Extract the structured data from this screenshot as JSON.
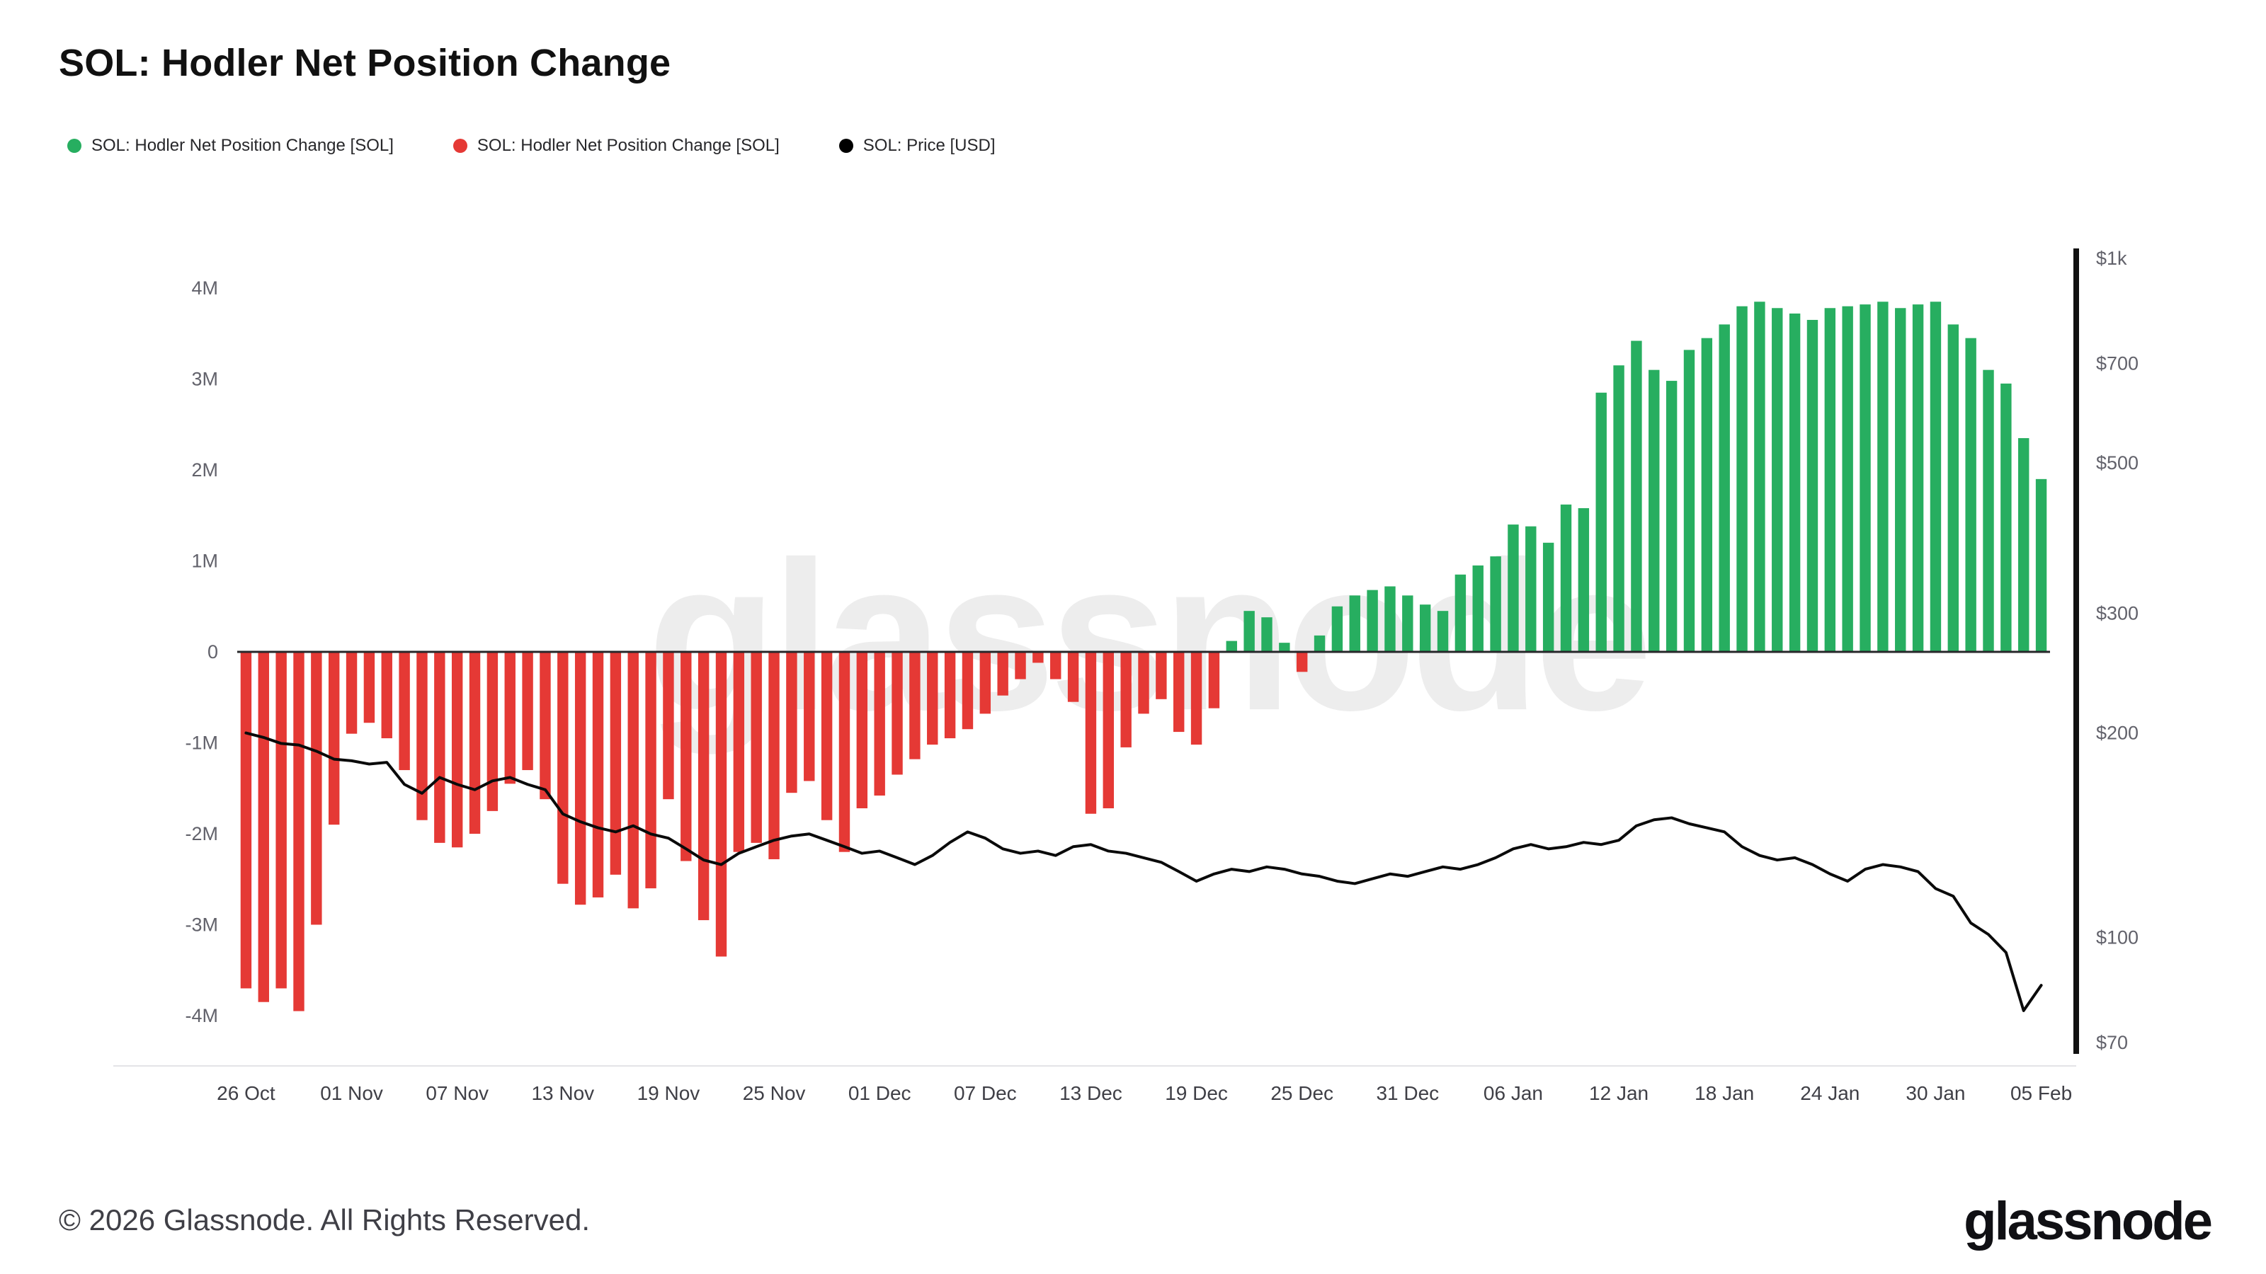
{
  "title": "SOL: Hodler Net Position Change",
  "watermark": "glassnode",
  "legend": [
    {
      "label": "SOL: Hodler Net Position Change [SOL]",
      "color": "#27ae60"
    },
    {
      "label": "SOL: Hodler Net Position Change [SOL]",
      "color": "#e53935"
    },
    {
      "label": "SOL: Price [USD]",
      "color": "#000000"
    }
  ],
  "footer": {
    "copyright": "© 2026 Glassnode. All Rights Reserved.",
    "brand": "glassnode"
  },
  "chart_data": {
    "type": "bar",
    "title": "SOL: Hodler Net Position Change",
    "grid": false,
    "legend_position": "top-left",
    "x_unit": "day",
    "x_ticks": {
      "labels": [
        "26 Oct",
        "01 Nov",
        "07 Nov",
        "13 Nov",
        "19 Nov",
        "25 Nov",
        "01 Dec",
        "07 Dec",
        "13 Dec",
        "19 Dec",
        "25 Dec",
        "31 Dec",
        "06 Jan",
        "12 Jan",
        "18 Jan",
        "24 Jan",
        "30 Jan",
        "05 Feb"
      ],
      "indices": [
        0,
        6,
        12,
        18,
        24,
        30,
        36,
        42,
        48,
        54,
        60,
        66,
        72,
        78,
        84,
        90,
        96,
        102
      ]
    },
    "left_axis": {
      "ticks": [
        "4M",
        "3M",
        "2M",
        "1M",
        "0",
        "-1M",
        "-2M",
        "-3M",
        "-4M"
      ],
      "values": [
        4,
        3,
        2,
        1,
        0,
        -1,
        -2,
        -3,
        -4
      ],
      "unit": "M SOL",
      "ylim": [
        -4.3,
        4.3
      ]
    },
    "right_axis": {
      "ticks": [
        "$1k",
        "$700",
        "$500",
        "$300",
        "$200",
        "$100",
        "$70"
      ],
      "values": [
        1000,
        700,
        500,
        300,
        200,
        100,
        70
      ],
      "scale": "log",
      "range": [
        70,
        1000
      ],
      "unit": "USD"
    },
    "series": [
      {
        "name": "SOL: Hodler Net Position Change [SOL]",
        "type": "bar",
        "axis": "left",
        "unit": "M",
        "positive_color": "#27ae60",
        "negative_color": "#e53935",
        "values": [
          -3.7,
          -3.85,
          -3.7,
          -3.95,
          -3.0,
          -1.9,
          -0.9,
          -0.78,
          -0.95,
          -1.3,
          -1.85,
          -2.1,
          -2.15,
          -2.0,
          -1.75,
          -1.45,
          -1.3,
          -1.62,
          -2.55,
          -2.78,
          -2.7,
          -2.45,
          -2.82,
          -2.6,
          -1.62,
          -2.3,
          -2.95,
          -3.35,
          -2.2,
          -2.1,
          -2.28,
          -1.55,
          -1.42,
          -1.85,
          -2.2,
          -1.72,
          -1.58,
          -1.35,
          -1.18,
          -1.02,
          -0.95,
          -0.85,
          -0.68,
          -0.48,
          -0.3,
          -0.12,
          -0.3,
          -0.55,
          -1.78,
          -1.72,
          -1.05,
          -0.68,
          -0.52,
          -0.88,
          -1.02,
          -0.62,
          0.12,
          0.45,
          0.38,
          0.1,
          -0.22,
          0.18,
          0.5,
          0.62,
          0.68,
          0.72,
          0.62,
          0.52,
          0.45,
          0.85,
          0.95,
          1.05,
          1.4,
          1.38,
          1.2,
          1.62,
          1.58,
          2.85,
          3.15,
          3.42,
          3.1,
          2.98,
          3.32,
          3.45,
          3.6,
          3.8,
          3.85,
          3.78,
          3.72,
          3.65,
          3.78,
          3.8,
          3.82,
          3.85,
          3.78,
          3.82,
          3.85,
          3.6,
          3.45,
          3.1,
          2.95,
          2.35,
          1.9
        ]
      },
      {
        "name": "SOL: Price [USD]",
        "type": "line",
        "axis": "right",
        "color": "#0a0a0a",
        "values": [
          200,
          197,
          193,
          192,
          188,
          183,
          182,
          180,
          181,
          168,
          163,
          172,
          168,
          165,
          170,
          172,
          168,
          165,
          152,
          148,
          145,
          143,
          146,
          142,
          140,
          135,
          130,
          128,
          133,
          136,
          139,
          141,
          142,
          139,
          136,
          133,
          134,
          131,
          128,
          132,
          138,
          143,
          140,
          135,
          133,
          134,
          132,
          136,
          137,
          134,
          133,
          131,
          129,
          125,
          121,
          124,
          126,
          125,
          127,
          126,
          124,
          123,
          121,
          120,
          122,
          124,
          123,
          125,
          127,
          126,
          128,
          131,
          135,
          137,
          135,
          136,
          138,
          137,
          139,
          146,
          149,
          150,
          147,
          145,
          143,
          136,
          132,
          130,
          131,
          128,
          124,
          121,
          126,
          128,
          127,
          125,
          118,
          115,
          105,
          101,
          95,
          78,
          85
        ]
      }
    ]
  }
}
